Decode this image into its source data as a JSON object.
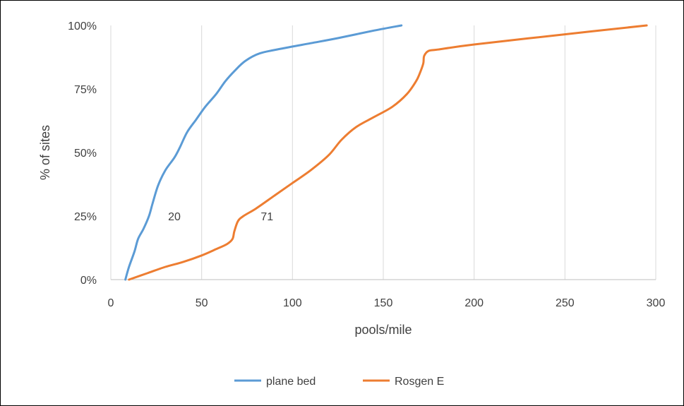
{
  "chart_data": {
    "type": "line",
    "xlabel": "pools/mile",
    "ylabel": "% of sites",
    "xlim": [
      0,
      300
    ],
    "ylim": [
      0,
      100
    ],
    "x_ticks": [
      0,
      50,
      100,
      150,
      200,
      250,
      300
    ],
    "x_tick_labels": [
      "0",
      "50",
      "100",
      "150",
      "200",
      "250",
      "300"
    ],
    "y_ticks": [
      0,
      25,
      50,
      75,
      100
    ],
    "y_tick_labels": [
      "0%",
      "25%",
      "50%",
      "75%",
      "100%"
    ],
    "grid": "vertical",
    "legend_position": "bottom",
    "series": [
      {
        "name": "plane bed",
        "color": "#5b9bd5",
        "points": [
          [
            8,
            0
          ],
          [
            10,
            5
          ],
          [
            13,
            11
          ],
          [
            15,
            16
          ],
          [
            18,
            20
          ],
          [
            21,
            25
          ],
          [
            23,
            30
          ],
          [
            26,
            37
          ],
          [
            30,
            43
          ],
          [
            35,
            48
          ],
          [
            38,
            52
          ],
          [
            42,
            58
          ],
          [
            47,
            63
          ],
          [
            52,
            68
          ],
          [
            58,
            73
          ],
          [
            63,
            78
          ],
          [
            68,
            82
          ],
          [
            74,
            86
          ],
          [
            82,
            89
          ],
          [
            95,
            91
          ],
          [
            110,
            93
          ],
          [
            125,
            95
          ],
          [
            145,
            98
          ],
          [
            160,
            100
          ]
        ]
      },
      {
        "name": "Rosgen E",
        "color": "#ed7d31",
        "points": [
          [
            10,
            0
          ],
          [
            20,
            2.5
          ],
          [
            30,
            5
          ],
          [
            40,
            7
          ],
          [
            50,
            9.5
          ],
          [
            58,
            12
          ],
          [
            64,
            14
          ],
          [
            67,
            16
          ],
          [
            68,
            19
          ],
          [
            70,
            23
          ],
          [
            73,
            25
          ],
          [
            80,
            28
          ],
          [
            90,
            33
          ],
          [
            100,
            38
          ],
          [
            110,
            43
          ],
          [
            120,
            49
          ],
          [
            127,
            55
          ],
          [
            135,
            60
          ],
          [
            145,
            64
          ],
          [
            155,
            68
          ],
          [
            163,
            73
          ],
          [
            168,
            78
          ],
          [
            170,
            81
          ],
          [
            172,
            85
          ],
          [
            172.5,
            88
          ],
          [
            175,
            90
          ],
          [
            180,
            90.5
          ],
          [
            200,
            92.5
          ],
          [
            250,
            96.5
          ],
          [
            295,
            100
          ]
        ]
      }
    ],
    "annotations": [
      {
        "text": "20",
        "x": 35,
        "y": 25
      },
      {
        "text": "71",
        "x": 86,
        "y": 25
      }
    ]
  }
}
